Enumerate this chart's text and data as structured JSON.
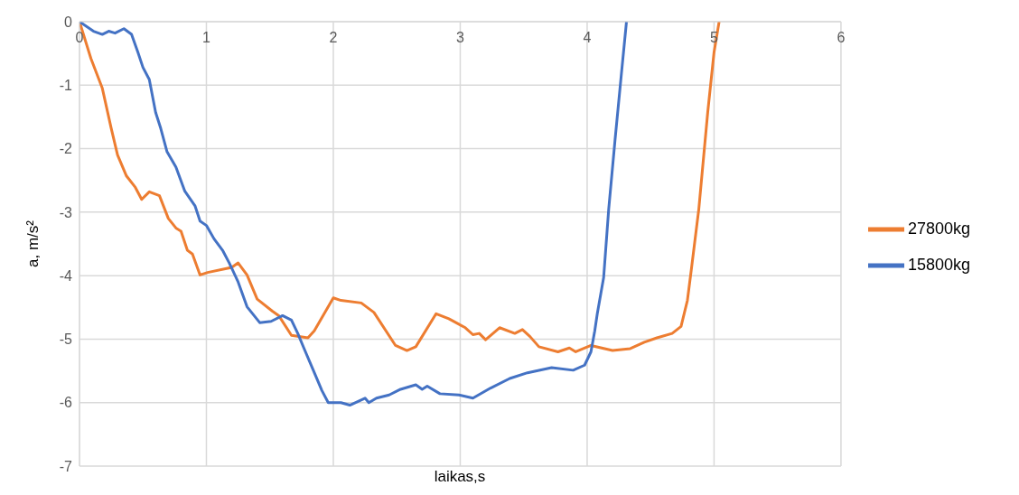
{
  "chart_data": {
    "type": "line",
    "xlabel": "laikas,s",
    "ylabel": "a, m/s²",
    "xlim": [
      0,
      6
    ],
    "xticks": [
      0,
      1,
      2,
      3,
      4,
      5,
      6
    ],
    "ylim": [
      -7,
      0
    ],
    "yticks": [
      0,
      -1,
      -2,
      -3,
      -4,
      -5,
      -6,
      -7
    ],
    "grid": true,
    "legend": "right",
    "marker": "none",
    "line_style": "solid",
    "series": [
      {
        "name": "27800kg",
        "color": "#ed7d31",
        "x": [
          0,
          0.09,
          0.18,
          0.25,
          0.3,
          0.37,
          0.44,
          0.49,
          0.55,
          0.63,
          0.7,
          0.76,
          0.8,
          0.85,
          0.89,
          0.95,
          1.01,
          1.15,
          1.2,
          1.25,
          1.32,
          1.4,
          1.52,
          1.57,
          1.67,
          1.8,
          1.85,
          2.0,
          2.06,
          2.22,
          2.32,
          2.49,
          2.58,
          2.65,
          2.81,
          2.91,
          3.04,
          3.1,
          3.15,
          3.2,
          3.31,
          3.43,
          3.49,
          3.55,
          3.62,
          3.77,
          3.86,
          3.91,
          4.03,
          4.2,
          4.34,
          4.45,
          4.55,
          4.67,
          4.74,
          4.79,
          4.82,
          4.88,
          4.95,
          5.0,
          5.04
        ],
        "values": [
          0,
          -0.58,
          -1.05,
          -1.68,
          -2.1,
          -2.43,
          -2.61,
          -2.8,
          -2.68,
          -2.74,
          -3.1,
          -3.25,
          -3.3,
          -3.6,
          -3.66,
          -3.99,
          -3.95,
          -3.89,
          -3.87,
          -3.8,
          -3.99,
          -4.37,
          -4.56,
          -4.63,
          -4.94,
          -4.98,
          -4.87,
          -4.35,
          -4.39,
          -4.43,
          -4.58,
          -5.1,
          -5.18,
          -5.12,
          -4.6,
          -4.68,
          -4.82,
          -4.93,
          -4.91,
          -5.01,
          -4.82,
          -4.91,
          -4.85,
          -4.96,
          -5.12,
          -5.2,
          -5.14,
          -5.2,
          -5.1,
          -5.18,
          -5.15,
          -5.05,
          -4.98,
          -4.91,
          -4.8,
          -4.39,
          -3.92,
          -2.95,
          -1.43,
          -0.48,
          0
        ]
      },
      {
        "name": "15800kg",
        "color": "#4472c4",
        "x": [
          0,
          0.11,
          0.18,
          0.23,
          0.28,
          0.35,
          0.41,
          0.46,
          0.5,
          0.55,
          0.6,
          0.64,
          0.69,
          0.76,
          0.83,
          0.91,
          0.95,
          1.0,
          1.06,
          1.13,
          1.18,
          1.25,
          1.32,
          1.42,
          1.51,
          1.6,
          1.67,
          1.72,
          1.77,
          1.84,
          1.91,
          1.96,
          2.06,
          2.13,
          2.25,
          2.28,
          2.34,
          2.44,
          2.53,
          2.65,
          2.7,
          2.74,
          2.84,
          2.99,
          3.1,
          3.24,
          3.39,
          3.53,
          3.72,
          3.89,
          3.98,
          4.03,
          4.06,
          4.08,
          4.13,
          4.17,
          4.22,
          4.27,
          4.31
        ],
        "values": [
          0,
          -0.15,
          -0.2,
          -0.15,
          -0.18,
          -0.11,
          -0.2,
          -0.48,
          -0.72,
          -0.91,
          -1.43,
          -1.68,
          -2.05,
          -2.29,
          -2.67,
          -2.9,
          -3.14,
          -3.21,
          -3.42,
          -3.61,
          -3.8,
          -4.1,
          -4.49,
          -4.74,
          -4.72,
          -4.63,
          -4.7,
          -4.91,
          -5.15,
          -5.48,
          -5.81,
          -6.0,
          -6.0,
          -6.04,
          -5.93,
          -6.0,
          -5.93,
          -5.88,
          -5.79,
          -5.72,
          -5.79,
          -5.74,
          -5.86,
          -5.88,
          -5.93,
          -5.77,
          -5.62,
          -5.53,
          -5.45,
          -5.49,
          -5.41,
          -5.2,
          -4.87,
          -4.6,
          -4.03,
          -2.95,
          -1.86,
          -0.82,
          0
        ]
      }
    ]
  }
}
